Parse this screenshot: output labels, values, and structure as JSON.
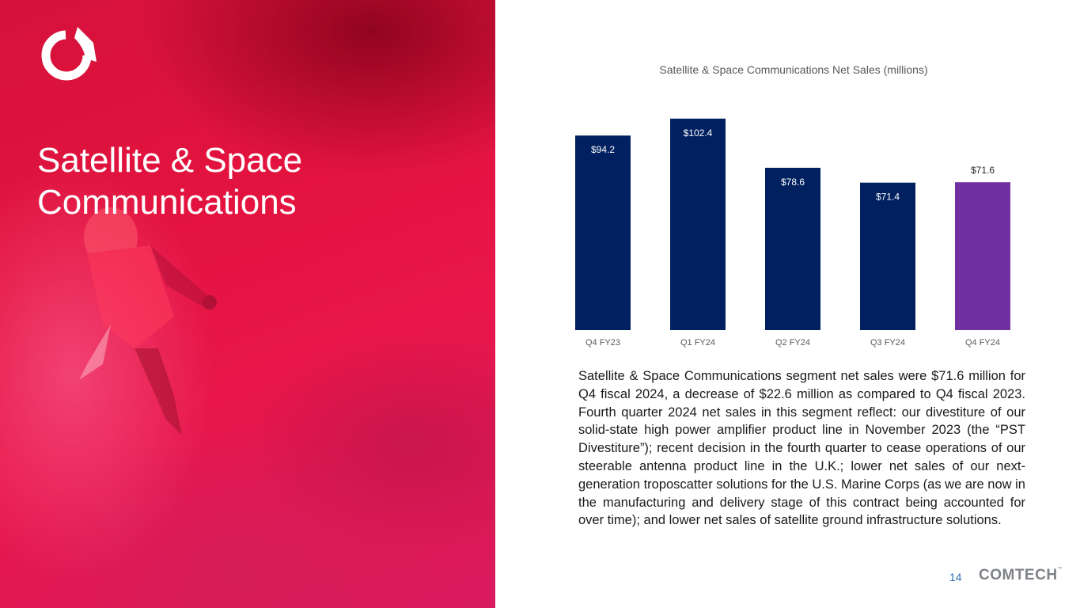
{
  "slide": {
    "title": "Satellite & Space Communications",
    "body": "Satellite & Space Communications segment net sales were $71.6 million for Q4 fiscal 2024, a decrease of $22.6 million as compared to Q4 fiscal 2023. Fourth quarter 2024 net sales in this segment reflect: our divestiture of our solid-state high power amplifier product line in November 2023 (the “PST Divestiture”); recent decision in the fourth quarter to cease operations of our steerable antenna product line in the U.K.; lower net sales of our next-generation troposcatter solutions for the U.S. Marine Corps (as we are now in the manufacturing and delivery stage of this contract being accounted for over time); and lower net sales of satellite ground infrastructure solutions.",
    "page_number": "14",
    "brand": "COMTECH",
    "brand_mark": "™"
  },
  "chart_data": {
    "type": "bar",
    "title": "Satellite & Space Communications Net Sales (millions)",
    "categories": [
      "Q4 FY23",
      "Q1 FY24",
      "Q2 FY24",
      "Q3 FY24",
      "Q4 FY24"
    ],
    "values": [
      94.2,
      102.4,
      78.6,
      71.4,
      71.6
    ],
    "labels": [
      "$94.2",
      "$102.4",
      "$78.6",
      "$71.4",
      "$71.6"
    ],
    "bar_colors": [
      "#002060",
      "#002060",
      "#002060",
      "#002060",
      "#7030a0"
    ],
    "label_inside": [
      true,
      true,
      true,
      true,
      false
    ],
    "ylim": [
      0,
      110
    ],
    "grid": false,
    "legend": "none"
  },
  "colors": {
    "title_text": "#ffffff",
    "bar_primary": "#002060",
    "bar_highlight": "#7030a0",
    "page_number": "#2b6cb0"
  }
}
